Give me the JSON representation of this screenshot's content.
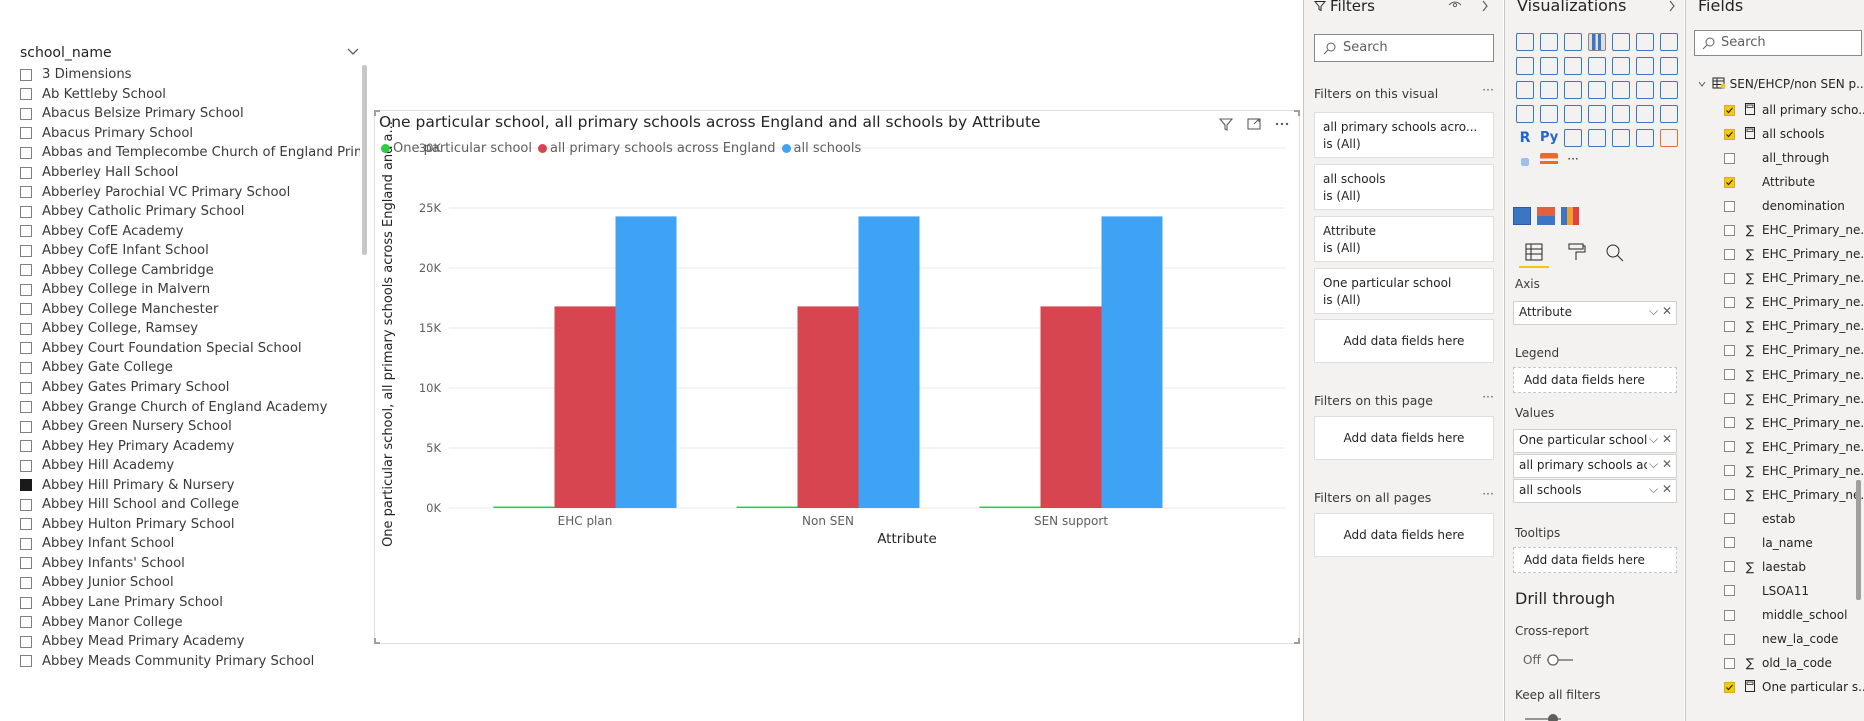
{
  "slicer": {
    "header": "school_name",
    "items": [
      {
        "label": "3 Dimensions",
        "checked": false
      },
      {
        "label": "Ab Kettleby School",
        "checked": false
      },
      {
        "label": "Abacus Belsize Primary School",
        "checked": false
      },
      {
        "label": "Abacus Primary School",
        "checked": false
      },
      {
        "label": "Abbas and Templecombe Church of England Primar...",
        "checked": false
      },
      {
        "label": "Abberley Hall School",
        "checked": false
      },
      {
        "label": "Abberley Parochial VC Primary School",
        "checked": false
      },
      {
        "label": "Abbey Catholic Primary School",
        "checked": false
      },
      {
        "label": "Abbey CofE Academy",
        "checked": false
      },
      {
        "label": "Abbey CofE Infant School",
        "checked": false
      },
      {
        "label": "Abbey College Cambridge",
        "checked": false
      },
      {
        "label": "Abbey College in Malvern",
        "checked": false
      },
      {
        "label": "Abbey College Manchester",
        "checked": false
      },
      {
        "label": "Abbey College, Ramsey",
        "checked": false
      },
      {
        "label": "Abbey Court Foundation Special School",
        "checked": false
      },
      {
        "label": "Abbey Gate College",
        "checked": false
      },
      {
        "label": "Abbey Gates Primary School",
        "checked": false
      },
      {
        "label": "Abbey Grange Church of England Academy",
        "checked": false
      },
      {
        "label": "Abbey Green Nursery School",
        "checked": false
      },
      {
        "label": "Abbey Hey Primary Academy",
        "checked": false
      },
      {
        "label": "Abbey Hill Academy",
        "checked": false
      },
      {
        "label": "Abbey Hill Primary & Nursery",
        "checked": true
      },
      {
        "label": "Abbey Hill School and College",
        "checked": false
      },
      {
        "label": "Abbey Hulton Primary School",
        "checked": false
      },
      {
        "label": "Abbey Infant School",
        "checked": false
      },
      {
        "label": "Abbey Infants' School",
        "checked": false
      },
      {
        "label": "Abbey Junior School",
        "checked": false
      },
      {
        "label": "Abbey Lane Primary School",
        "checked": false
      },
      {
        "label": "Abbey Manor College",
        "checked": false
      },
      {
        "label": "Abbey Mead Primary Academy",
        "checked": false
      },
      {
        "label": "Abbey Meads Community Primary School",
        "checked": false
      }
    ]
  },
  "visual": {
    "title": "One particular school, all primary schools across England and all schools by Attribute"
  },
  "chart_data": {
    "type": "bar",
    "categories": [
      "EHC plan",
      "Non SEN",
      "SEN support"
    ],
    "series": [
      {
        "name": "One particular school",
        "color": "#2ecc40",
        "values": [
          40,
          40,
          40
        ]
      },
      {
        "name": "all primary schools across England",
        "color": "#d64550",
        "values": [
          16800,
          16800,
          16800
        ]
      },
      {
        "name": "all schools",
        "color": "#3fa3f5",
        "values": [
          24300,
          24300,
          24300
        ]
      }
    ],
    "xlabel": "Attribute",
    "ylabel": "One particular school, all primary schools across England and a...",
    "yticks": [
      "0K",
      "5K",
      "10K",
      "15K",
      "20K",
      "25K",
      "30K"
    ],
    "ylim": [
      0,
      30000
    ],
    "legend_position": "top-left",
    "grid": true
  },
  "filters": {
    "title": "Filters",
    "search_placeholder": "Search",
    "on_visual_label": "Filters on this visual",
    "on_visual": [
      {
        "name": "all primary schools acro...",
        "state": "is (All)"
      },
      {
        "name": "all schools",
        "state": "is (All)"
      },
      {
        "name": "Attribute",
        "state": "is (All)"
      },
      {
        "name": "One particular school",
        "state": "is (All)"
      }
    ],
    "add_fields": "Add data fields here",
    "on_page_label": "Filters on this page",
    "on_all_pages_label": "Filters on all pages",
    "more": "···"
  },
  "viz": {
    "title": "Visualizations",
    "axis_label": "Axis",
    "axis_field": "Attribute",
    "legend_label": "Legend",
    "add_fields": "Add data fields here",
    "values_label": "Values",
    "values": [
      "One particular school",
      "all primary schools acro",
      "all schools"
    ],
    "tooltips_label": "Tooltips",
    "drill_through": "Drill through",
    "cross_report": "Cross-report",
    "off": "Off",
    "keep_filters": "Keep all filters",
    "r_label": "R",
    "py_label": "Py",
    "more": "···"
  },
  "fields": {
    "title": "Fields",
    "search_placeholder": "Search",
    "table": "SEN/EHCP/non SEN p...",
    "items": [
      {
        "label": "all primary scho...",
        "checked": true,
        "icon": "calc"
      },
      {
        "label": "all schools",
        "checked": true,
        "icon": "calc"
      },
      {
        "label": "all_through",
        "checked": false,
        "icon": ""
      },
      {
        "label": "Attribute",
        "checked": true,
        "icon": ""
      },
      {
        "label": "denomination",
        "checked": false,
        "icon": ""
      },
      {
        "label": "EHC_Primary_ne...",
        "checked": false,
        "icon": "sigma"
      },
      {
        "label": "EHC_Primary_ne...",
        "checked": false,
        "icon": "sigma"
      },
      {
        "label": "EHC_Primary_ne...",
        "checked": false,
        "icon": "sigma"
      },
      {
        "label": "EHC_Primary_ne...",
        "checked": false,
        "icon": "sigma"
      },
      {
        "label": "EHC_Primary_ne...",
        "checked": false,
        "icon": "sigma"
      },
      {
        "label": "EHC_Primary_ne...",
        "checked": false,
        "icon": "sigma"
      },
      {
        "label": "EHC_Primary_ne...",
        "checked": false,
        "icon": "sigma"
      },
      {
        "label": "EHC_Primary_ne...",
        "checked": false,
        "icon": "sigma"
      },
      {
        "label": "EHC_Primary_ne...",
        "checked": false,
        "icon": "sigma"
      },
      {
        "label": "EHC_Primary_ne...",
        "checked": false,
        "icon": "sigma"
      },
      {
        "label": "EHC_Primary_ne...",
        "checked": false,
        "icon": "sigma"
      },
      {
        "label": "EHC_Primary_ne...",
        "checked": false,
        "icon": "sigma"
      },
      {
        "label": "estab",
        "checked": false,
        "icon": ""
      },
      {
        "label": "la_name",
        "checked": false,
        "icon": ""
      },
      {
        "label": "laestab",
        "checked": false,
        "icon": "sigma"
      },
      {
        "label": "LSOA11",
        "checked": false,
        "icon": ""
      },
      {
        "label": "middle_school",
        "checked": false,
        "icon": ""
      },
      {
        "label": "new_la_code",
        "checked": false,
        "icon": ""
      },
      {
        "label": "old_la_code",
        "checked": false,
        "icon": "sigma"
      },
      {
        "label": "One particular s...",
        "checked": true,
        "icon": "calc"
      }
    ]
  }
}
